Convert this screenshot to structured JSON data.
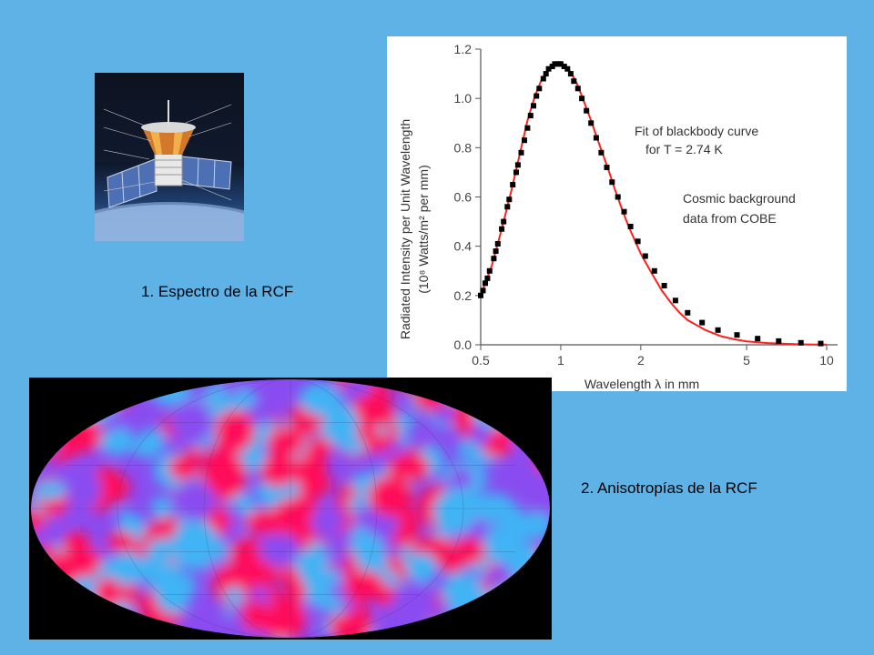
{
  "captions": {
    "spectrum": "1. Espectro de la RCF",
    "anisotropies": "2. Anisotropías de la RCF"
  },
  "colors": {
    "background": "#5fb2e6",
    "fit_curve": "#ff2020",
    "data_points": "#000000",
    "map_hot": "#ff0a5a",
    "map_mid": "#8a4cf0",
    "map_cold": "#3fb4f4"
  },
  "satellite_photo": {
    "subject": "COBE satellite illustration"
  },
  "chart_data": {
    "type": "scatter",
    "ylabel_line1": "Radiated Intensity per Unit Wavelength",
    "ylabel_line2": "(10⁸ Watts/m² per mm)",
    "xlabel": "Wavelength λ in mm",
    "x_scale": "log",
    "xlim": [
      0.5,
      10
    ],
    "ylim": [
      0,
      1.2
    ],
    "x_ticks": [
      "0.5",
      "1",
      "2",
      "5",
      "10"
    ],
    "x_tick_values": [
      0.5,
      1,
      2,
      5,
      10
    ],
    "y_ticks": [
      "0.0",
      "0.2",
      "0.4",
      "0.6",
      "0.8",
      "1.0",
      "1.2"
    ],
    "y_tick_values": [
      0,
      0.2,
      0.4,
      0.6,
      0.8,
      1.0,
      1.2
    ],
    "grid": false,
    "annotations": [
      {
        "line1": "Fit of blackbody curve",
        "line2": "for T = 2.74 K"
      },
      {
        "line1": "Cosmic background",
        "line2": "data from COBE"
      }
    ],
    "series": [
      {
        "label": "fit",
        "kind": "line",
        "x": [
          0.5,
          0.55,
          0.6,
          0.65,
          0.7,
          0.75,
          0.8,
          0.85,
          0.9,
          0.95,
          1.0,
          1.05,
          1.1,
          1.15,
          1.2,
          1.3,
          1.4,
          1.5,
          1.6,
          1.7,
          1.8,
          2.0,
          2.2,
          2.4,
          2.6,
          2.8,
          3.0,
          3.5,
          4.0,
          4.5,
          5.0,
          6.0,
          7.0,
          8.0,
          9.0,
          10.0
        ],
        "y": [
          0.2,
          0.32,
          0.47,
          0.62,
          0.77,
          0.91,
          1.01,
          1.08,
          1.12,
          1.14,
          1.14,
          1.13,
          1.1,
          1.06,
          1.01,
          0.91,
          0.81,
          0.72,
          0.63,
          0.55,
          0.48,
          0.37,
          0.29,
          0.22,
          0.17,
          0.13,
          0.1,
          0.06,
          0.035,
          0.022,
          0.014,
          0.007,
          0.004,
          0.002,
          0.001,
          0.001
        ]
      },
      {
        "label": "data",
        "kind": "points",
        "x": [
          0.5,
          0.51,
          0.52,
          0.53,
          0.54,
          0.56,
          0.57,
          0.58,
          0.6,
          0.61,
          0.63,
          0.64,
          0.66,
          0.68,
          0.69,
          0.71,
          0.73,
          0.75,
          0.77,
          0.79,
          0.81,
          0.83,
          0.86,
          0.88,
          0.9,
          0.93,
          0.95,
          0.98,
          1.0,
          1.03,
          1.06,
          1.09,
          1.12,
          1.16,
          1.2,
          1.25,
          1.3,
          1.36,
          1.42,
          1.49,
          1.56,
          1.64,
          1.73,
          1.83,
          1.95,
          2.08,
          2.25,
          2.45,
          2.7,
          3.0,
          3.4,
          3.9,
          4.6,
          5.5,
          6.6,
          8.0,
          9.5
        ],
        "y": [
          0.2,
          0.22,
          0.25,
          0.27,
          0.3,
          0.35,
          0.38,
          0.41,
          0.47,
          0.5,
          0.56,
          0.59,
          0.65,
          0.7,
          0.73,
          0.78,
          0.83,
          0.88,
          0.93,
          0.97,
          1.01,
          1.04,
          1.08,
          1.1,
          1.12,
          1.13,
          1.14,
          1.14,
          1.14,
          1.13,
          1.12,
          1.1,
          1.07,
          1.04,
          1.0,
          0.95,
          0.9,
          0.84,
          0.78,
          0.72,
          0.66,
          0.6,
          0.54,
          0.48,
          0.42,
          0.36,
          0.3,
          0.24,
          0.18,
          0.13,
          0.09,
          0.06,
          0.04,
          0.025,
          0.015,
          0.008,
          0.005
        ]
      }
    ]
  },
  "map": {
    "subject": "COBE CMB anisotropy all-sky map"
  }
}
